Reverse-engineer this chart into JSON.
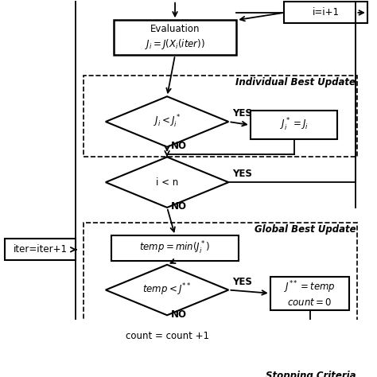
{
  "background_color": "#ffffff",
  "eval_text": "Evaluation\n$J_i = J(X_i(iter))$",
  "ii1_text": "i=i+1",
  "d1_text": "$J_i < J^*_i$",
  "upd1_text": "$J^*_i = J_i$",
  "d2_text": "i < n",
  "tmp_text": "$temp = min(J^*_i)$",
  "d3_text": "$temp < J^{**}$",
  "upd2_text": "$J^{**} = temp$\n$count = 0$",
  "cnt_text": "count = count +1",
  "iter_text": "iter=iter+1",
  "ib_label": "Individual Best Update",
  "gb_label": "Global Best Update",
  "sc_label": "Stopping Criteria",
  "yes_label": "YES",
  "no_label": "NO"
}
